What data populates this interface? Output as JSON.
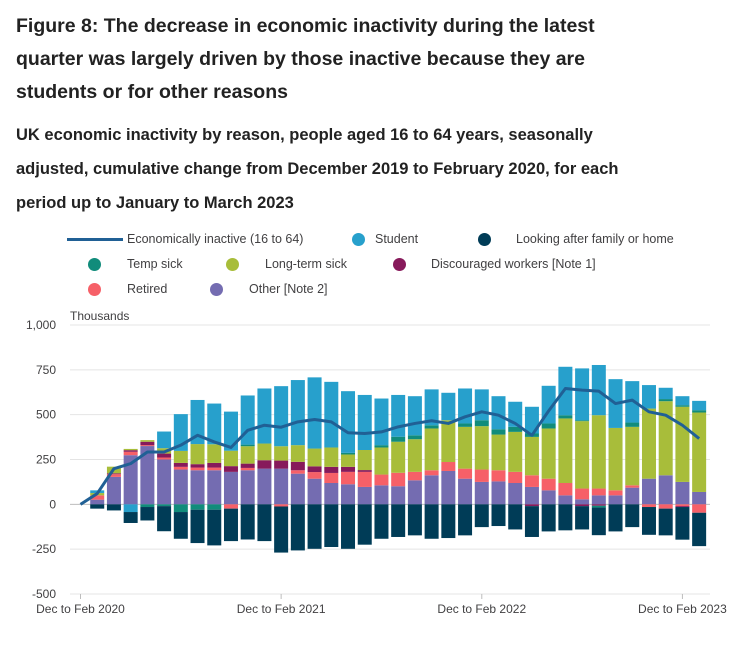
{
  "title": "Figure 8: The decrease in economic inactivity during the latest quarter was largely driven by those inactive because they are students or for other reasons",
  "subtitle": "UK economic inactivity by reason, people aged 16 to 64 years, seasonally adjusted, cumulative change from December 2019 to February 2020, for each period up to January to March 2023",
  "chart_data": {
    "type": "bar",
    "stacked": true,
    "ylabel": "Thousands",
    "ylim": [
      -500,
      1000
    ],
    "yticks": [
      "1,000",
      "750",
      "500",
      "250",
      "0",
      "-250",
      "-500"
    ],
    "ytick_values": [
      1000,
      750,
      500,
      250,
      0,
      -250,
      -500
    ],
    "xtick_labels": [
      "Dec to Feb 2020",
      "Dec to Feb 2021",
      "Dec to Feb 2022",
      "Dec to Feb 2023"
    ],
    "xtick_periods": [
      0,
      12,
      24,
      36
    ],
    "periods": 38,
    "grid": true,
    "legend_position": "top",
    "line": {
      "name": "Economically inactive (16 to 64)",
      "color": "#206095",
      "values": [
        0,
        60,
        199,
        227,
        292,
        292,
        330,
        385,
        348,
        317,
        413,
        441,
        430,
        460,
        473,
        460,
        399,
        395,
        404,
        432,
        451,
        466,
        451,
        488,
        516,
        497,
        451,
        385,
        521,
        646,
        637,
        631,
        562,
        581,
        516,
        497,
        441,
        367
      ]
    },
    "series": [
      {
        "name": "Looking after family or home",
        "color": "#003c57",
        "values": [
          0,
          -24,
          -34,
          -61,
          -75,
          -140,
          -149,
          -186,
          -199,
          -181,
          -196,
          -205,
          -257,
          -257,
          -248,
          -238,
          -248,
          -225,
          -192,
          -182,
          -173,
          -192,
          -188,
          -173,
          -127,
          -121,
          -140,
          -172,
          -151,
          -145,
          -130,
          -154,
          -151,
          -127,
          -155,
          -149,
          -182,
          -186
        ]
      },
      {
        "name": "Other [Note 2]",
        "color": "#746cb1",
        "values": [
          0,
          26,
          153,
          274,
          325,
          250,
          194,
          190,
          190,
          181,
          190,
          199,
          199,
          171,
          143,
          119,
          112,
          97,
          106,
          101,
          134,
          162,
          186,
          143,
          125,
          128,
          119,
          97,
          78,
          50,
          28,
          50,
          50,
          93,
          143,
          162,
          125,
          69
        ]
      },
      {
        "name": "Retired",
        "color": "#f66068",
        "values": [
          0,
          24,
          15,
          19,
          5,
          11,
          15,
          15,
          15,
          -24,
          13,
          0,
          -12,
          19,
          37,
          56,
          69,
          84,
          60,
          75,
          47,
          28,
          50,
          56,
          69,
          62,
          62,
          65,
          65,
          69,
          60,
          38,
          28,
          13,
          -15,
          -24,
          -10,
          -47
        ]
      },
      {
        "name": "Discouraged workers [Note 1]",
        "color": "#871a5b",
        "values": [
          0,
          0,
          5,
          9,
          19,
          22,
          22,
          19,
          26,
          32,
          24,
          47,
          45,
          47,
          32,
          34,
          28,
          10,
          0,
          0,
          0,
          0,
          0,
          0,
          0,
          0,
          0,
          -10,
          0,
          0,
          -10,
          -8,
          0,
          0,
          0,
          0,
          -5,
          0
        ]
      },
      {
        "name": "Long-term sick",
        "color": "#a8bd3a",
        "values": [
          0,
          13,
          37,
          7,
          9,
          30,
          67,
          112,
          104,
          86,
          97,
          93,
          80,
          93,
          99,
          108,
          69,
          112,
          151,
          173,
          182,
          233,
          233,
          233,
          242,
          199,
          223,
          214,
          280,
          360,
          376,
          409,
          348,
          326,
          391,
          413,
          419,
          443
        ]
      },
      {
        "name": "Temp sick",
        "color": "#118c7b",
        "values": [
          0,
          0,
          0,
          0,
          -15,
          -10,
          -43,
          -30,
          -30,
          0,
          9,
          0,
          0,
          0,
          0,
          0,
          9,
          0,
          13,
          28,
          22,
          18,
          0,
          19,
          33,
          30,
          28,
          19,
          28,
          18,
          5,
          -10,
          0,
          24,
          0,
          12,
          9,
          13
        ]
      },
      {
        "name": "Student",
        "color": "#27a0cc",
        "values": [
          0,
          15,
          0,
          -43,
          0,
          93,
          205,
          246,
          227,
          218,
          274,
          307,
          335,
          363,
          397,
          366,
          344,
          307,
          260,
          233,
          218,
          200,
          153,
          195,
          172,
          184,
          140,
          149,
          210,
          270,
          289,
          280,
          272,
          231,
          131,
          63,
          50,
          52
        ]
      }
    ]
  },
  "legend": [
    {
      "label": "Economically inactive (16 to 64)",
      "color": "#206095",
      "marker": "line"
    },
    {
      "label": "Student",
      "color": "#27a0cc",
      "marker": "circle"
    },
    {
      "label": "Looking after family or home",
      "color": "#003c57",
      "marker": "circle"
    },
    {
      "label": "Temp sick",
      "color": "#118c7b",
      "marker": "circle"
    },
    {
      "label": "Long-term sick",
      "color": "#a8bd3a",
      "marker": "circle"
    },
    {
      "label": "Discouraged workers [Note 1]",
      "color": "#871a5b",
      "marker": "circle"
    },
    {
      "label": "Retired",
      "color": "#f66068",
      "marker": "circle"
    },
    {
      "label": "Other [Note 2]",
      "color": "#746cb1",
      "marker": "circle"
    }
  ]
}
